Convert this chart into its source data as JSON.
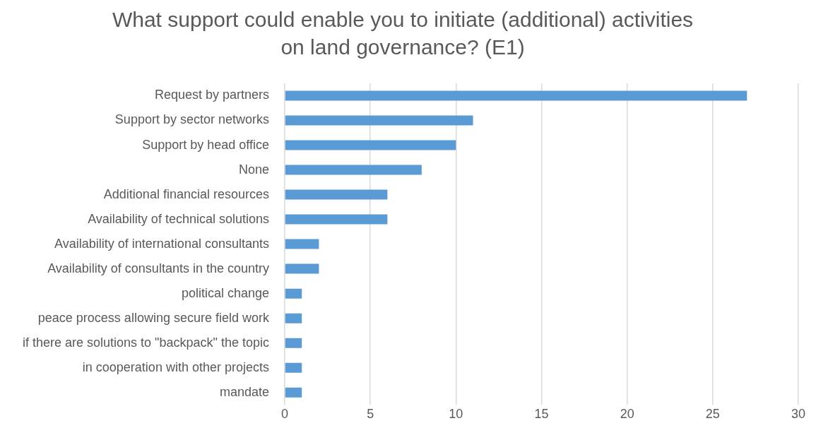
{
  "chart_data": {
    "type": "bar",
    "title": "What support could enable you to initiate (additional) activities on land governance? (E1)",
    "orientation": "horizontal",
    "categories": [
      "Request by partners",
      "Support by sector networks",
      "Support by head office",
      "None",
      "Additional financial resources",
      "Availability of technical solutions",
      "Availability of international consultants",
      "Availability of consultants in the country",
      "political change",
      "peace process allowing secure field work",
      "if there are solutions to \"backpack\" the topic",
      "in cooperation with other projects",
      "mandate"
    ],
    "values": [
      27,
      11,
      10,
      8,
      6,
      6,
      2,
      2,
      1,
      1,
      1,
      1,
      1
    ],
    "color": "#5b9bd5",
    "xlim": [
      0,
      30
    ],
    "xticks": [
      0,
      5,
      10,
      15,
      20,
      25,
      30
    ],
    "grid": "x",
    "legend": false
  }
}
